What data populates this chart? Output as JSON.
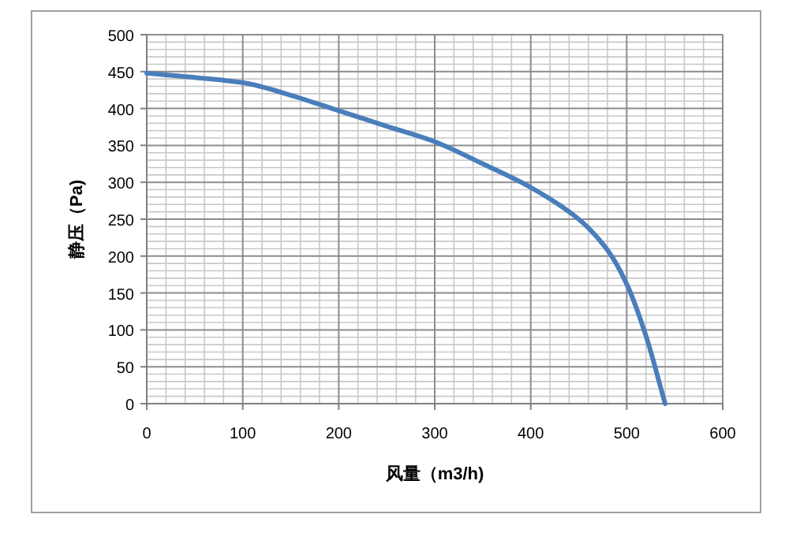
{
  "chart_data": {
    "type": "line",
    "xlabel": "风量（m3/h)",
    "ylabel": "静压（Pa)",
    "x": [
      0,
      50,
      100,
      150,
      200,
      250,
      300,
      350,
      400,
      450,
      480,
      500,
      520,
      540
    ],
    "series": [
      {
        "color": "#4a7ebb",
        "values": [
          448,
          442,
          435,
          418,
          397,
          376,
          355,
          325,
          293,
          250,
          208,
          162,
          92,
          0
        ]
      }
    ],
    "xlim": [
      0,
      600
    ],
    "xticks": [
      0,
      100,
      200,
      300,
      400,
      500,
      600
    ],
    "ylim": [
      0,
      500
    ],
    "yticks": [
      0,
      50,
      100,
      150,
      200,
      250,
      300,
      350,
      400,
      450,
      500
    ],
    "grid": true,
    "marker": "none",
    "line_style": "solid"
  }
}
